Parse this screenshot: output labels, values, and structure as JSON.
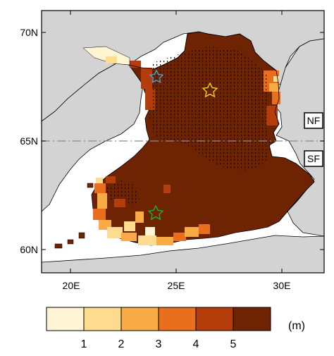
{
  "map": {
    "lat_ticks": [
      "60N",
      "65N",
      "70N"
    ],
    "lon_ticks": [
      "20E",
      "25E",
      "30E"
    ],
    "region_labels": {
      "north": "NF",
      "south": "SF"
    },
    "divider_latitude": "65N",
    "colors": {
      "ocean": "#ffffff",
      "land": "#d3d3d3",
      "border": "#000000",
      "divider": "#8c8c8c"
    },
    "stations": [
      {
        "name": "cyan-star",
        "color": "#4aa3c8"
      },
      {
        "name": "yellow-star",
        "color": "#f2d21b"
      },
      {
        "name": "green-star",
        "color": "#22b02a"
      }
    ]
  },
  "colorbar": {
    "unit": "(m)",
    "tick_labels": [
      "1",
      "2",
      "3",
      "4",
      "5"
    ],
    "colors": [
      "#fff4d4",
      "#fedc8f",
      "#f9ab45",
      "#e86f1d",
      "#b43e0b",
      "#6e2303"
    ]
  }
}
